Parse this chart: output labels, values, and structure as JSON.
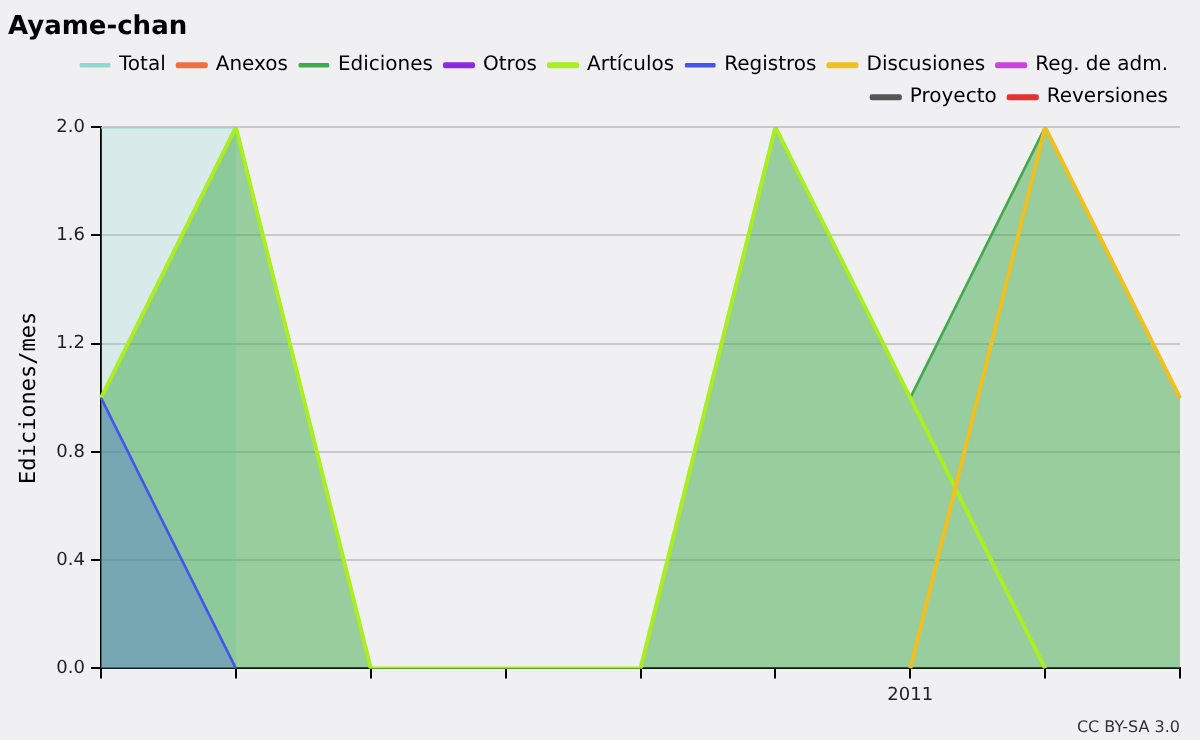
{
  "chart_data": {
    "type": "area",
    "title": "Ayame-chan",
    "ylabel": "Ediciones/mes",
    "categories": [
      null,
      null,
      null,
      null,
      null,
      null,
      "2011",
      null,
      null
    ],
    "series": [
      {
        "name": "Total",
        "type": "area",
        "color": "#8fd8d0",
        "values": [
          2,
          2,
          null,
          null,
          null,
          null,
          null,
          null,
          null
        ]
      },
      {
        "name": "Anexos",
        "type": "line",
        "color": "#f07040",
        "values": [
          null,
          null,
          null,
          null,
          null,
          null,
          null,
          null,
          null
        ]
      },
      {
        "name": "Ediciones",
        "type": "area",
        "color": "#3faa4a",
        "values": [
          1,
          2,
          0,
          0,
          0,
          2,
          1,
          2,
          1
        ]
      },
      {
        "name": "Otros",
        "type": "line",
        "color": "#8a2be2",
        "values": [
          null,
          null,
          null,
          null,
          null,
          null,
          null,
          null,
          null
        ]
      },
      {
        "name": "Artículos",
        "type": "line",
        "color": "#aaee22",
        "values": [
          1,
          2,
          0,
          0,
          0,
          2,
          1,
          0,
          null
        ]
      },
      {
        "name": "Registros",
        "type": "area",
        "color": "#4455ee",
        "values": [
          1,
          0,
          null,
          null,
          null,
          null,
          null,
          null,
          null
        ]
      },
      {
        "name": "Discusiones",
        "type": "line",
        "color": "#f0c020",
        "values": [
          null,
          null,
          null,
          null,
          null,
          null,
          0,
          2,
          1
        ]
      },
      {
        "name": "Reg. de adm.",
        "type": "line",
        "color": "#cc44dd",
        "values": [
          null,
          null,
          null,
          null,
          null,
          null,
          null,
          null,
          null
        ]
      },
      {
        "name": "Proyecto",
        "type": "line",
        "color": "#555555",
        "values": [
          null,
          null,
          null,
          null,
          null,
          null,
          null,
          null,
          null
        ]
      },
      {
        "name": "Reversiones",
        "type": "line",
        "color": "#e83030",
        "values": [
          null,
          null,
          null,
          null,
          null,
          null,
          null,
          null,
          null
        ]
      }
    ],
    "ylim": [
      0,
      2
    ],
    "yticks": [
      {
        "value": 0,
        "label": "0.0"
      },
      {
        "value": 0.4,
        "label": "0.4"
      },
      {
        "value": 0.8,
        "label": "0.8"
      },
      {
        "value": 1.2,
        "label": "1.2"
      },
      {
        "value": 1.6,
        "label": "1.6"
      },
      {
        "value": 2,
        "label": "2.0"
      }
    ],
    "grid": "y",
    "legend": "top right",
    "marker": "none",
    "annotations": [
      "CC BY-SA 3.0"
    ]
  }
}
